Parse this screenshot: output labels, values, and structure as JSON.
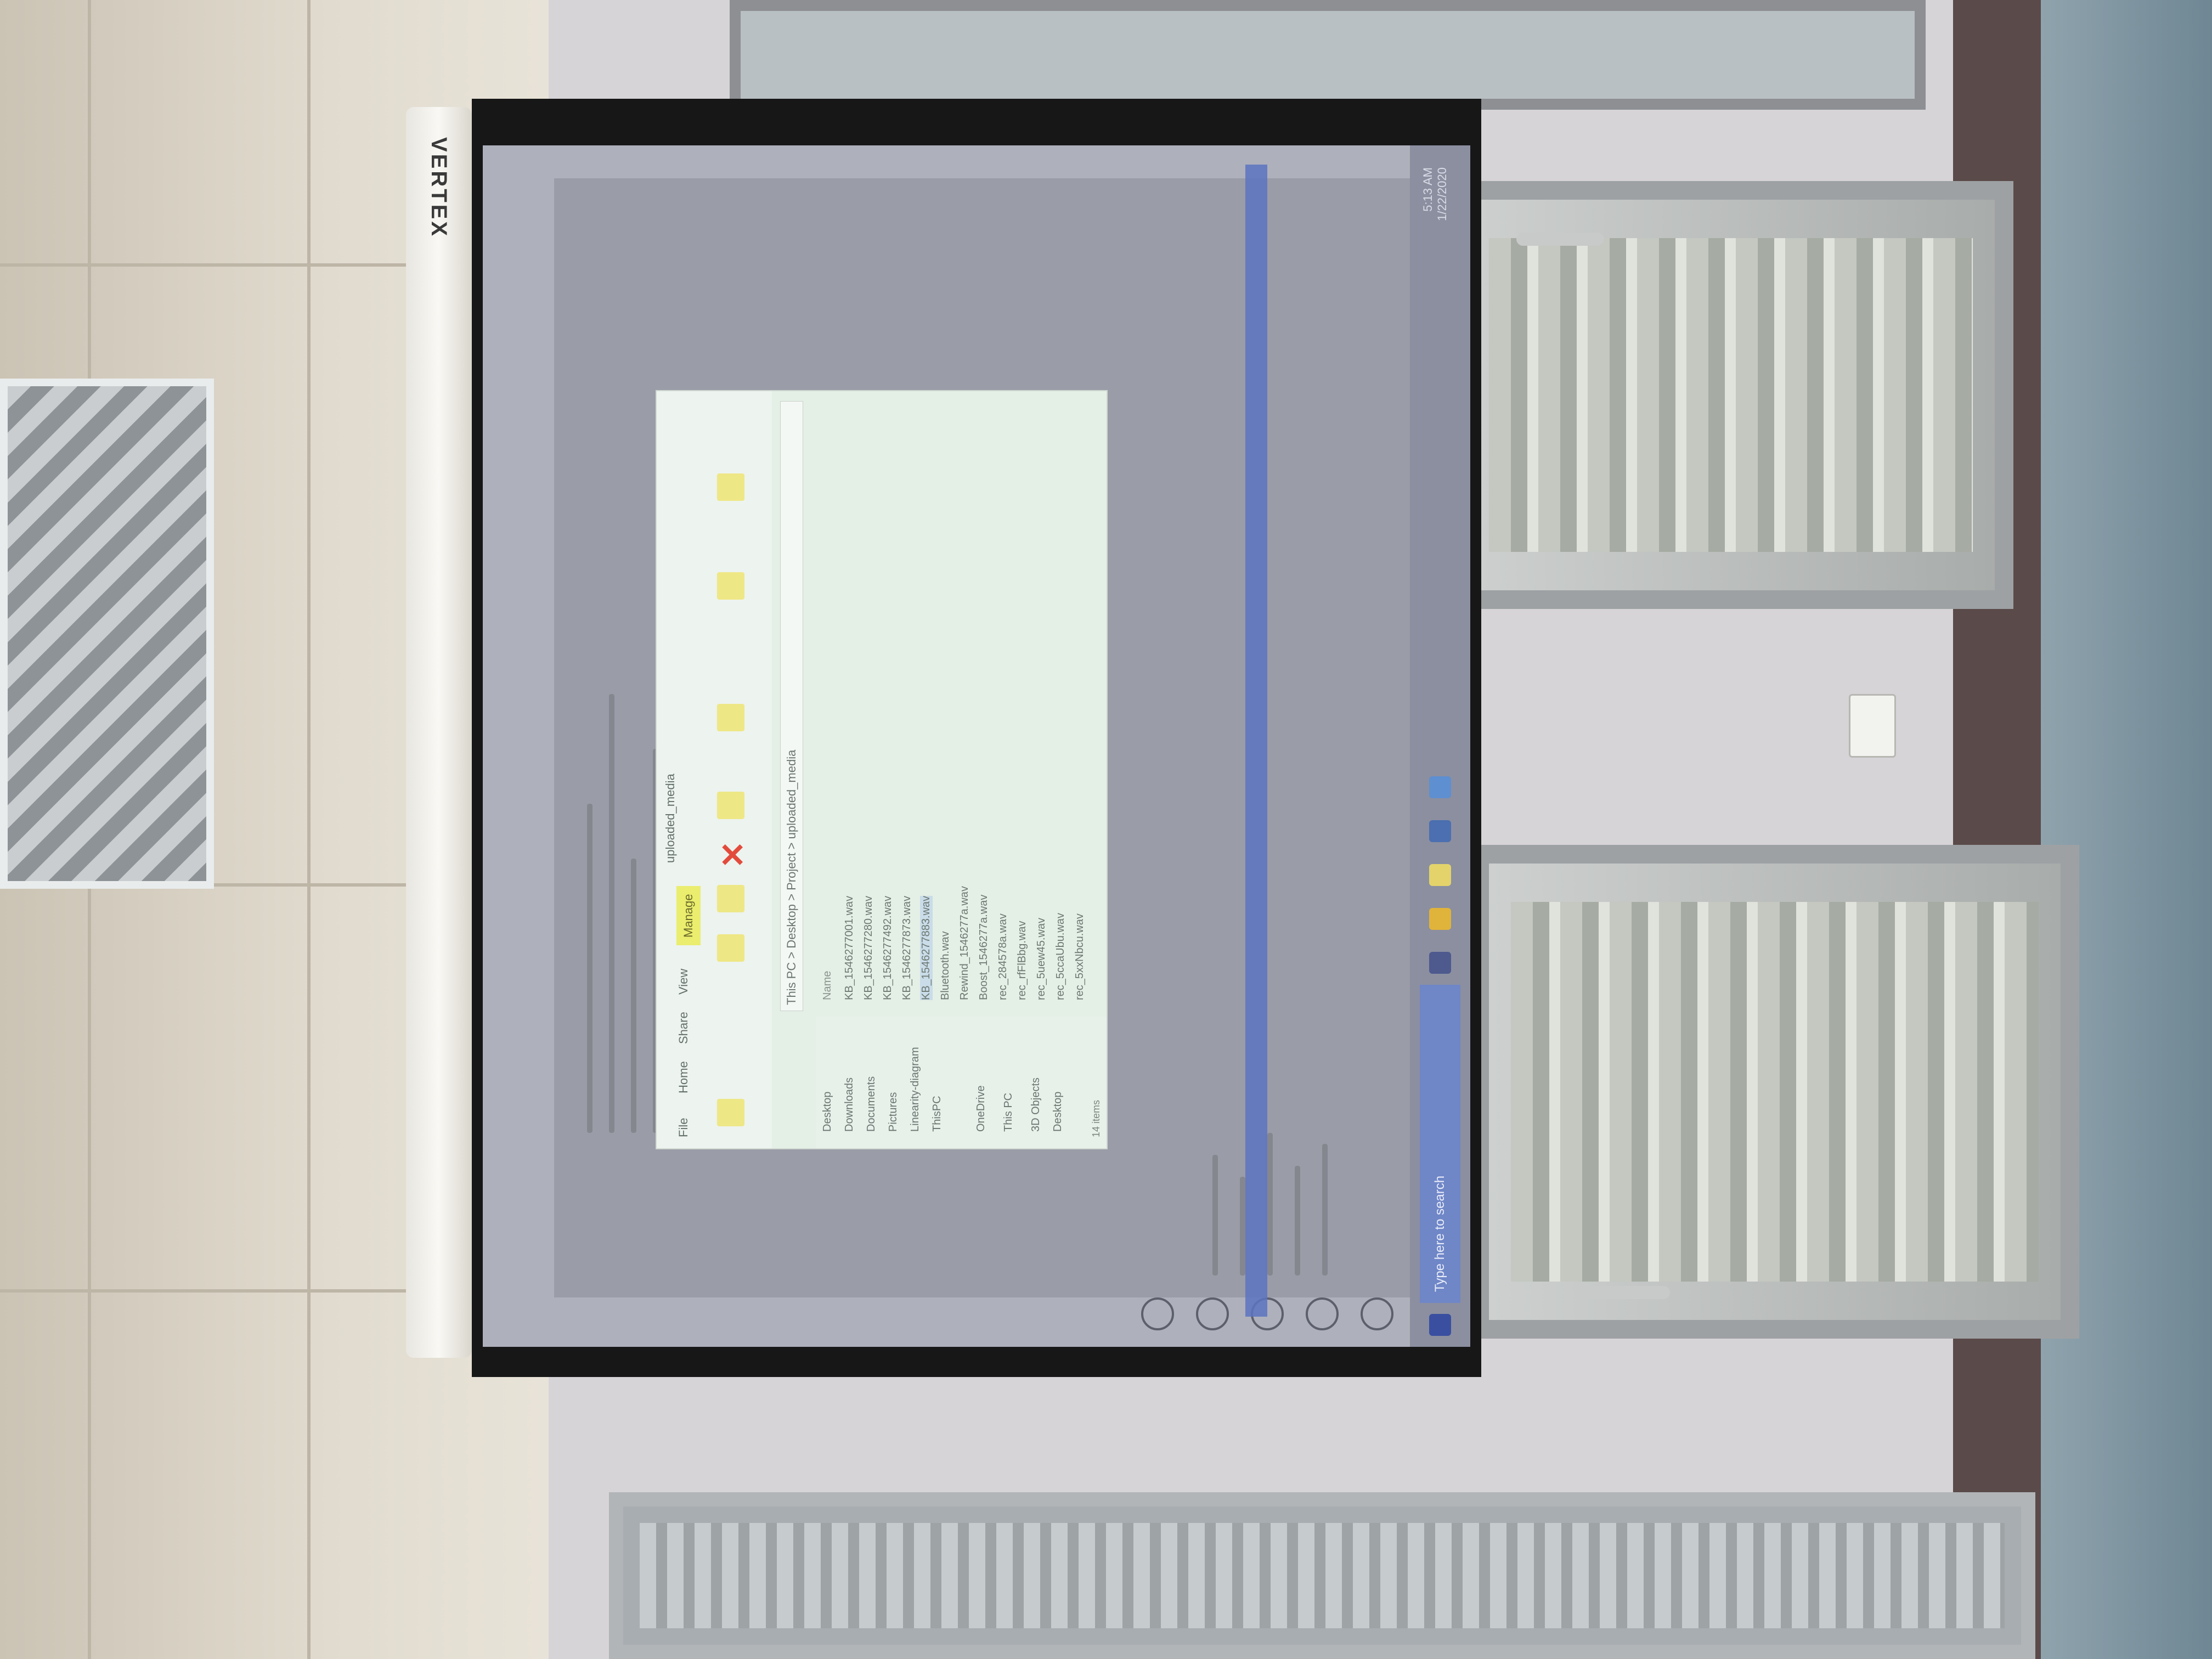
{
  "scene": {
    "screen_brand": "VERTEX"
  },
  "projected_desktop": {
    "explorer": {
      "ribbon_tabs": [
        "File",
        "Home",
        "Share",
        "View"
      ],
      "active_tab": "Manage",
      "path": "This PC > Desktop > Project > uploaded_media",
      "folder_title": "uploaded_media",
      "nav_items": [
        "Desktop",
        "Downloads",
        "Documents",
        "Pictures",
        "Linearity-diagram",
        "ThisPC",
        "OneDrive",
        "This PC",
        "3D Objects",
        "Desktop"
      ],
      "files": [
        "KB_1546277001.wav",
        "KB_1546277280.wav",
        "KB_1546277492.wav",
        "KB_1546277873.wav",
        "KB_1546277883.wav",
        "Bluetooth.wav",
        "Rewind_1546277a.wav",
        "Boost_1546277a.wav",
        "rec_284578a.wav",
        "rec_rfFlBbg.wav",
        "rec_5uew45.wav",
        "rec_5ccaUbu.wav",
        "rec_5xxNbcu.wav"
      ],
      "status": "14 items"
    },
    "taskbar": {
      "search_placeholder": "Type here to search",
      "clock_time": "5:13 AM",
      "clock_date": "1/22/2020"
    }
  }
}
